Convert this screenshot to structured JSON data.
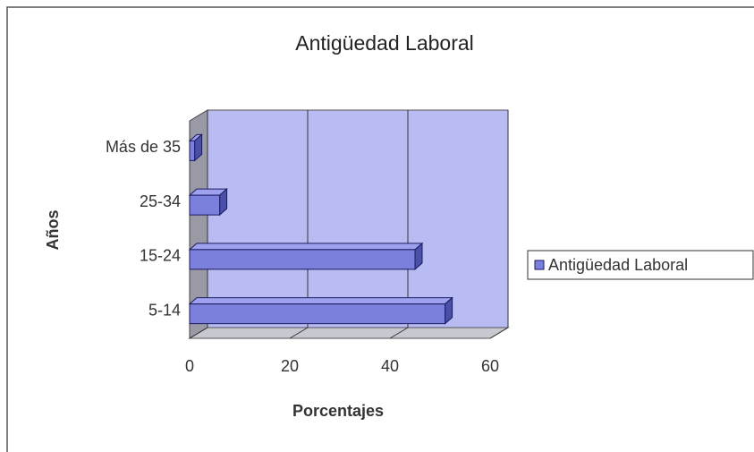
{
  "chart_data": {
    "type": "bar3d_horizontal",
    "title": "Antigüedad Laboral",
    "xlabel": "Porcentajes",
    "ylabel": "Años",
    "categories": [
      "5-14",
      "15-24",
      "25-34",
      "Más de 35"
    ],
    "series": [
      {
        "name": "Antigüedad Laboral",
        "color": "#7b80dc",
        "values": [
          51,
          45,
          6,
          1
        ]
      }
    ],
    "xlim": [
      0,
      60
    ],
    "xticks": [
      0,
      20,
      40,
      60
    ],
    "grid": true,
    "legend": "right"
  }
}
